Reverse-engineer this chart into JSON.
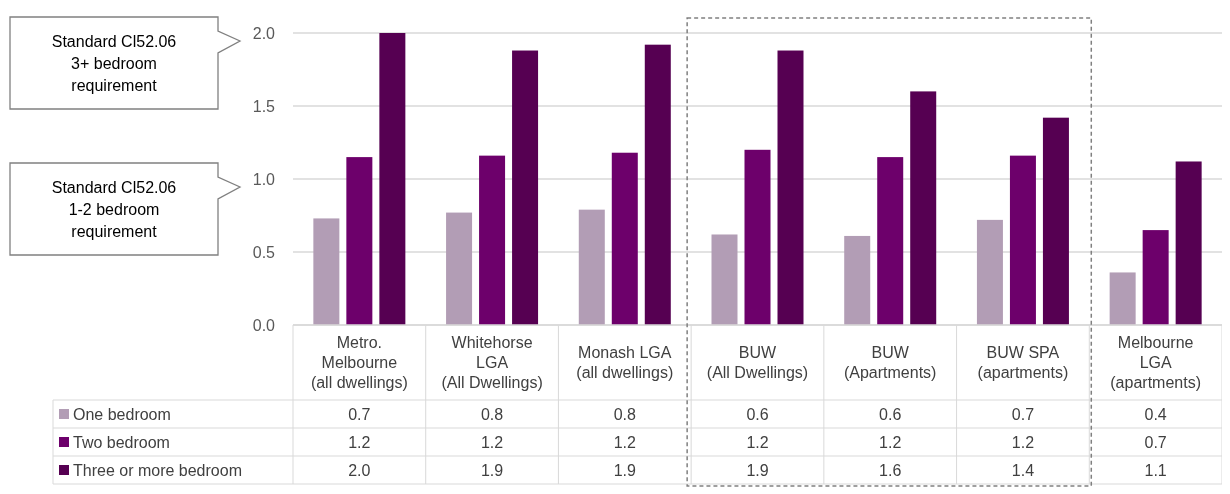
{
  "chart_data": {
    "type": "bar",
    "categories": [
      "Metro. Melbourne (all dwellings)",
      "Whitehorse LGA (All Dwellings)",
      "Monash LGA (all dwellings)",
      "BUW (All Dwellings)",
      "BUW (Apartments)",
      "BUW SPA (apartments)",
      "Melbourne LGA (apartments)"
    ],
    "series": [
      {
        "name": "One bedroom",
        "color": "#b29db5",
        "values": [
          0.73,
          0.77,
          0.79,
          0.62,
          0.61,
          0.72,
          0.36
        ],
        "value_labels": [
          "0.7",
          "0.8",
          "0.8",
          "0.6",
          "0.6",
          "0.7",
          "0.4"
        ]
      },
      {
        "name": "Two bedroom",
        "color": "#6d006b",
        "values": [
          1.15,
          1.16,
          1.18,
          1.2,
          1.15,
          1.16,
          0.65
        ],
        "value_labels": [
          "1.2",
          "1.2",
          "1.2",
          "1.2",
          "1.2",
          "1.2",
          "0.7"
        ]
      },
      {
        "name": "Three or more bedroom",
        "color": "#560052",
        "values": [
          2.0,
          1.88,
          1.92,
          1.88,
          1.6,
          1.42,
          1.12
        ],
        "value_labels": [
          "2.0",
          "1.9",
          "1.9",
          "1.9",
          "1.6",
          "1.4",
          "1.1"
        ]
      }
    ],
    "ylim": [
      0,
      2
    ],
    "yticks": [
      {
        "value": 0,
        "label": "0.0"
      },
      {
        "value": 0.5,
        "label": "0.5"
      },
      {
        "value": 1,
        "label": "1.0"
      },
      {
        "value": 1.5,
        "label": "1.5"
      },
      {
        "value": 2,
        "label": "2.0"
      }
    ],
    "grid": "y",
    "legend": "bottom",
    "annotations": [
      "Standard Cl52.06 3+ bedroom requirement",
      "Standard Cl52.06 1-2 bedroom requirement"
    ]
  }
}
